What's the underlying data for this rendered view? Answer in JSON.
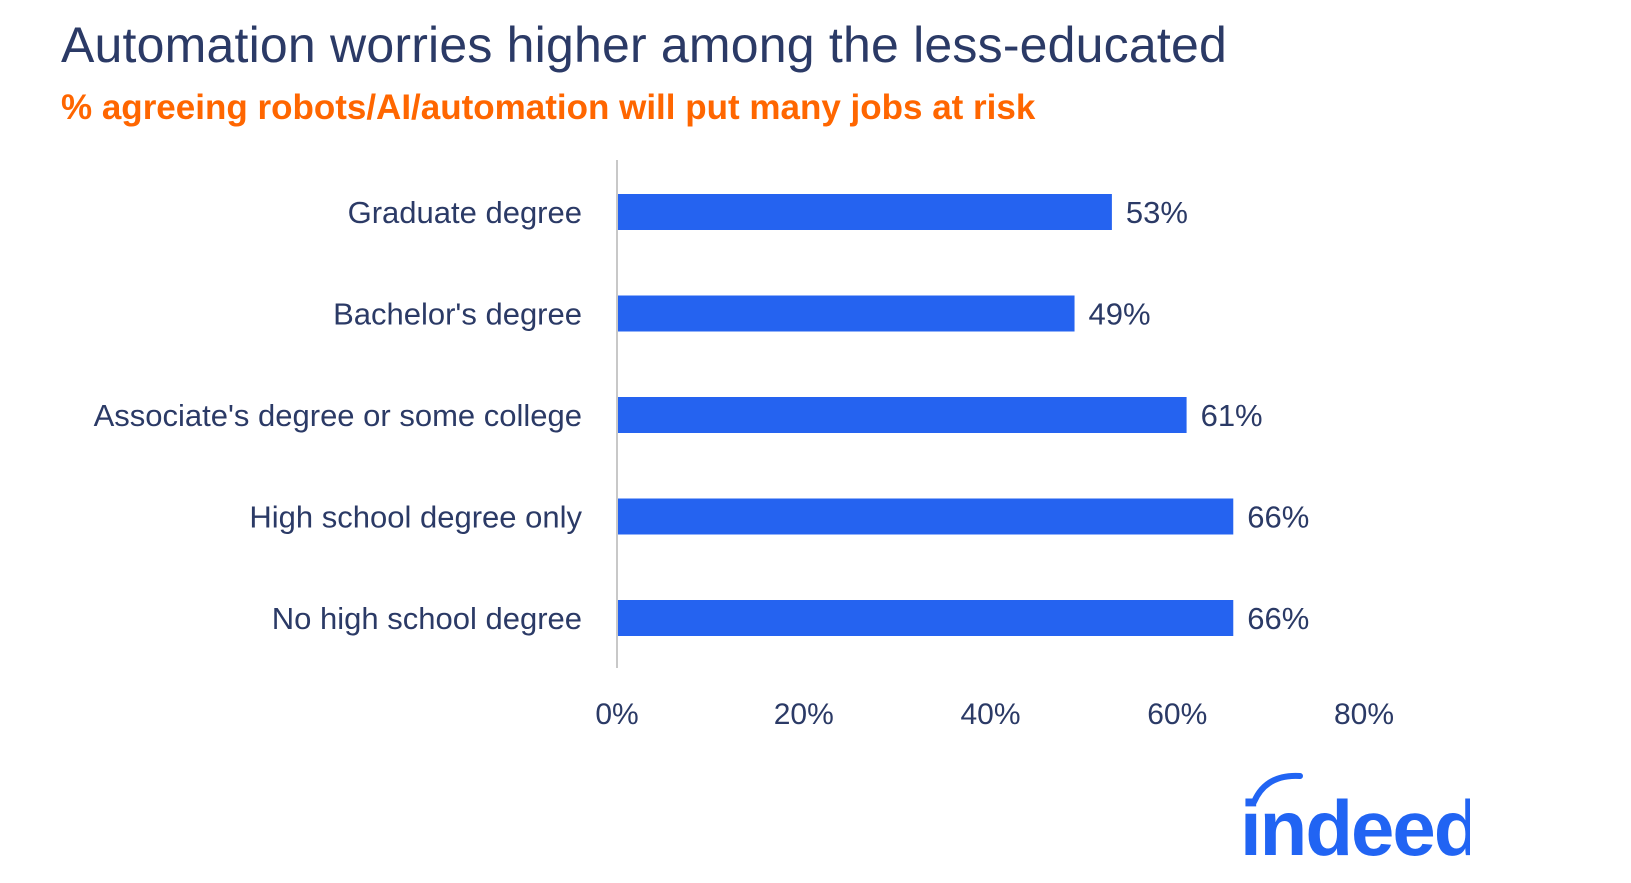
{
  "chart_data": {
    "type": "bar",
    "orientation": "horizontal",
    "title": "Automation worries higher among the less-educated",
    "subtitle": "% agreeing robots/AI/automation will put many jobs at risk",
    "categories": [
      "Graduate degree",
      "Bachelor's degree",
      "Associate's degree or some college",
      "High school degree only",
      "No high school degree"
    ],
    "values": [
      53,
      49,
      61,
      66,
      66
    ],
    "value_labels": [
      "53%",
      "49%",
      "61%",
      "66%",
      "66%"
    ],
    "xlim": [
      0,
      80
    ],
    "xticks": [
      0,
      20,
      40,
      60,
      80
    ],
    "xtick_labels": [
      "0%",
      "20%",
      "40%",
      "60%",
      "80%"
    ],
    "xlabel": "",
    "ylabel": "",
    "grid": false,
    "bar_color": "#2563f0",
    "text_color": "#2b3a66",
    "subtitle_color": "#ff6600"
  },
  "logo": {
    "text": "indeed",
    "color": "#2164f3"
  }
}
